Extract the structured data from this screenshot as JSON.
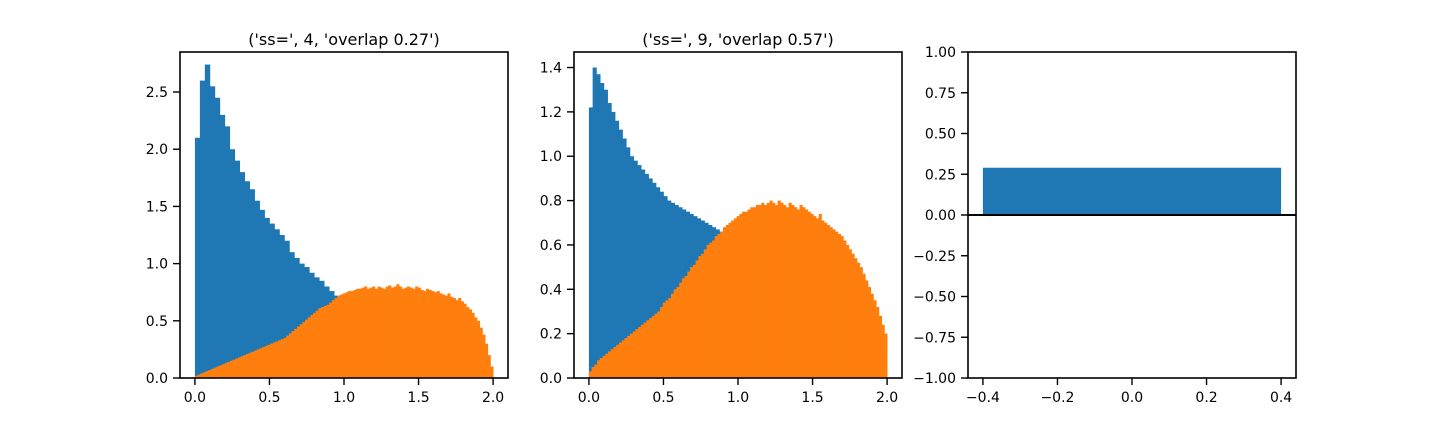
{
  "colors": {
    "series1": "#1f77b4",
    "series2": "#ff7f0e",
    "axis": "#000000"
  },
  "chart_data": [
    {
      "type": "bar",
      "subtype": "histogram",
      "title": "('ss=', 4, 'overlap 0.27')",
      "xlim": [
        -0.1,
        2.1
      ],
      "ylim": [
        0,
        2.85
      ],
      "xticks": [
        0.0,
        0.5,
        1.0,
        1.5,
        2.0
      ],
      "xtick_labels": [
        "0.0",
        "0.5",
        "1.0",
        "1.5",
        "2.0"
      ],
      "yticks": [
        0.0,
        0.5,
        1.0,
        1.5,
        2.0,
        2.5
      ],
      "ytick_labels": [
        "0.0",
        "0.5",
        "1.0",
        "1.5",
        "2.0",
        "2.5"
      ],
      "bin_range": [
        0,
        2
      ],
      "series": [
        {
          "color": "#1f77b4",
          "values": [
            2.1,
            2.6,
            2.74,
            2.55,
            2.45,
            2.3,
            2.2,
            2.0,
            1.9,
            1.8,
            1.72,
            1.65,
            1.55,
            1.47,
            1.4,
            1.35,
            1.3,
            1.25,
            1.2,
            1.1,
            1.05,
            1.0,
            0.97,
            0.92,
            0.88,
            0.85,
            0.8,
            0.76,
            0.72,
            0.7,
            0.66,
            0.63,
            0.6,
            0.58,
            0.55,
            0.52,
            0.5,
            0.48,
            0.46,
            0.44,
            0.42,
            0.4,
            0.38,
            0.36,
            0.34,
            0.32,
            0.3,
            0.28,
            0.26,
            0.24,
            0.22,
            0.2,
            0.18,
            0.16,
            0.14,
            0.12,
            0.1,
            0.08,
            0.06,
            0.04
          ]
        },
        {
          "color": "#ff7f0e",
          "values": [
            0.02,
            0.03,
            0.04,
            0.05,
            0.06,
            0.07,
            0.08,
            0.09,
            0.1,
            0.11,
            0.12,
            0.13,
            0.14,
            0.15,
            0.16,
            0.17,
            0.18,
            0.19,
            0.2,
            0.21,
            0.22,
            0.23,
            0.24,
            0.25,
            0.26,
            0.27,
            0.28,
            0.29,
            0.3,
            0.31,
            0.32,
            0.33,
            0.34,
            0.35,
            0.37,
            0.39,
            0.41,
            0.43,
            0.45,
            0.47,
            0.49,
            0.51,
            0.53,
            0.55,
            0.57,
            0.59,
            0.61,
            0.62,
            0.63,
            0.64,
            0.66,
            0.68,
            0.7,
            0.72,
            0.73,
            0.74,
            0.75,
            0.76,
            0.76,
            0.77,
            0.78,
            0.78,
            0.79,
            0.8,
            0.78,
            0.79,
            0.8,
            0.78,
            0.8,
            0.79,
            0.78,
            0.8,
            0.81,
            0.79,
            0.8,
            0.82,
            0.8,
            0.78,
            0.79,
            0.8,
            0.79,
            0.78,
            0.8,
            0.79,
            0.77,
            0.76,
            0.78,
            0.77,
            0.76,
            0.75,
            0.76,
            0.74,
            0.73,
            0.72,
            0.74,
            0.71,
            0.7,
            0.68,
            0.7,
            0.67,
            0.65,
            0.62,
            0.6,
            0.57,
            0.53,
            0.5,
            0.44,
            0.38,
            0.3,
            0.2,
            0.1
          ]
        }
      ]
    },
    {
      "type": "bar",
      "subtype": "histogram",
      "title": "('ss=', 9, 'overlap 0.57')",
      "xlim": [
        -0.1,
        2.1
      ],
      "ylim": [
        0,
        1.47
      ],
      "xticks": [
        0.0,
        0.5,
        1.0,
        1.5,
        2.0
      ],
      "xtick_labels": [
        "0.0",
        "0.5",
        "1.0",
        "1.5",
        "2.0"
      ],
      "yticks": [
        0.0,
        0.2,
        0.4,
        0.6,
        0.8,
        1.0,
        1.2,
        1.4
      ],
      "ytick_labels": [
        "0.0",
        "0.2",
        "0.4",
        "0.6",
        "0.8",
        "1.0",
        "1.2",
        "1.4"
      ],
      "bin_range": [
        0,
        2
      ],
      "series": [
        {
          "color": "#1f77b4",
          "values": [
            1.22,
            1.4,
            1.37,
            1.33,
            1.3,
            1.24,
            1.2,
            1.16,
            1.12,
            1.08,
            1.04,
            1.0,
            0.98,
            0.96,
            0.94,
            0.92,
            0.9,
            0.88,
            0.86,
            0.84,
            0.82,
            0.8,
            0.79,
            0.78,
            0.77,
            0.76,
            0.75,
            0.74,
            0.73,
            0.72,
            0.71,
            0.7,
            0.69,
            0.68,
            0.67,
            0.66,
            0.65,
            0.64,
            0.64,
            0.63,
            0.62,
            0.61,
            0.6,
            0.6,
            0.59,
            0.58,
            0.58,
            0.57,
            0.56,
            0.55,
            0.55,
            0.54,
            0.53,
            0.53,
            0.52,
            0.51,
            0.5,
            0.49,
            0.48,
            0.47,
            0.46,
            0.45,
            0.44,
            0.43,
            0.42,
            0.41,
            0.4,
            0.39,
            0.38,
            0.36,
            0.34,
            0.32,
            0.3,
            0.28,
            0.26,
            0.24,
            0.22,
            0.2,
            0.18,
            0.16
          ]
        },
        {
          "color": "#ff7f0e",
          "values": [
            0.03,
            0.05,
            0.06,
            0.08,
            0.09,
            0.1,
            0.11,
            0.12,
            0.13,
            0.14,
            0.15,
            0.16,
            0.17,
            0.18,
            0.19,
            0.2,
            0.21,
            0.22,
            0.23,
            0.24,
            0.25,
            0.26,
            0.27,
            0.28,
            0.29,
            0.3,
            0.32,
            0.34,
            0.35,
            0.36,
            0.38,
            0.4,
            0.41,
            0.43,
            0.45,
            0.46,
            0.48,
            0.5,
            0.51,
            0.53,
            0.55,
            0.56,
            0.58,
            0.6,
            0.61,
            0.62,
            0.64,
            0.65,
            0.66,
            0.68,
            0.69,
            0.7,
            0.71,
            0.72,
            0.73,
            0.74,
            0.75,
            0.75,
            0.76,
            0.77,
            0.77,
            0.78,
            0.78,
            0.79,
            0.78,
            0.79,
            0.8,
            0.79,
            0.78,
            0.8,
            0.79,
            0.78,
            0.77,
            0.79,
            0.78,
            0.77,
            0.76,
            0.78,
            0.77,
            0.76,
            0.75,
            0.74,
            0.73,
            0.72,
            0.74,
            0.71,
            0.7,
            0.69,
            0.68,
            0.67,
            0.66,
            0.65,
            0.64,
            0.62,
            0.6,
            0.58,
            0.56,
            0.54,
            0.52,
            0.5,
            0.47,
            0.44,
            0.41,
            0.38,
            0.35,
            0.32,
            0.28,
            0.24,
            0.2
          ]
        }
      ]
    },
    {
      "type": "bar",
      "title": "",
      "xlim": [
        -0.44,
        0.44
      ],
      "ylim": [
        -1.0,
        1.0
      ],
      "xticks": [
        -0.4,
        -0.2,
        0.0,
        0.2,
        0.4
      ],
      "xtick_labels": [
        "−0.4",
        "−0.2",
        "0.0",
        "0.2",
        "0.4"
      ],
      "yticks": [
        -1.0,
        -0.75,
        -0.5,
        -0.25,
        0.0,
        0.25,
        0.5,
        0.75,
        1.0
      ],
      "ytick_labels": [
        "−1.00",
        "−0.75",
        "−0.50",
        "−0.25",
        "0.00",
        "0.25",
        "0.50",
        "0.75",
        "1.00"
      ],
      "hline": 0,
      "bars": [
        {
          "x_center": 0.0,
          "width": 0.8,
          "value": 0.29,
          "color": "#1f77b4"
        }
      ]
    }
  ]
}
